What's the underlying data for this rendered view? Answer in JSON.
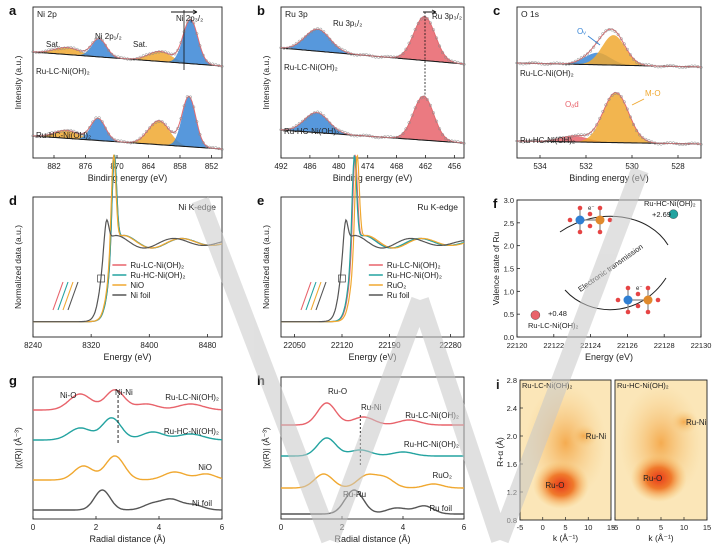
{
  "figure": {
    "watermark_color": "#c8c8c8",
    "colors": {
      "red": "#e8636b",
      "blue": "#3a86d6",
      "orange": "#f0a830",
      "teal": "#23a3a0",
      "gray": "#555555",
      "fit": "#e06a70",
      "envelope": "#1c1c1c",
      "heat_bg": "#fbe6b8",
      "heat_mid": "#f3a94a",
      "heat_core": "#e84a1e"
    }
  },
  "chart_data": [
    {
      "id": "a",
      "type": "line",
      "panel_label": "a",
      "title": "Ni 2p",
      "xlabel": "Binding energy (eV)",
      "ylabel": "Intensity (a.u.)",
      "xlim": [
        886,
        850
      ],
      "xticks": [
        882,
        876,
        870,
        864,
        858,
        852
      ],
      "spectra": [
        {
          "name": "Ru-LC-Ni(OH)₂",
          "components": [
            {
              "center": 879.5,
              "label": "Sat.",
              "color": "orange"
            },
            {
              "center": 873.4,
              "label": "Ni 2p₁/₂",
              "color": "blue"
            },
            {
              "center": 861.8,
              "label": "Sat.",
              "color": "orange"
            },
            {
              "center": 856.0,
              "label": "Ni 2p₃/₂",
              "color": "blue"
            }
          ]
        },
        {
          "name": "Ru-HC-Ni(OH)₂",
          "components": [
            {
              "center": 879.6,
              "color": "orange"
            },
            {
              "center": 873.6,
              "color": "blue"
            },
            {
              "center": 862.0,
              "color": "orange"
            },
            {
              "center": 856.3,
              "color": "blue"
            }
          ]
        }
      ],
      "labels": {
        "sat1": "Sat.",
        "p12": "Ni 2p₁/₂",
        "sat2": "Sat.",
        "p32": "Ni 2p₃/₂",
        "top": "Ru-LC-Ni(OH)₂",
        "bottom": "Ru-HC-Ni(OH)₂"
      }
    },
    {
      "id": "b",
      "type": "line",
      "panel_label": "b",
      "title": "Ru 3p",
      "xlabel": "Binding energy (eV)",
      "ylabel": "Intensity (a.u.)",
      "xlim": [
        492,
        454
      ],
      "xticks": [
        492,
        486,
        480,
        474,
        468,
        462,
        456
      ],
      "spectra": [
        {
          "name": "Ru-LC-Ni(OH)₂",
          "components": [
            {
              "center": 484.4,
              "label": "Ru 3p₁/₂",
              "color": "blue"
            },
            {
              "center": 462.2,
              "label": "Ru 3p₃/₂",
              "color": "red"
            }
          ]
        },
        {
          "name": "Ru-HC-Ni(OH)₂",
          "components": [
            {
              "center": 484.6,
              "color": "blue"
            },
            {
              "center": 462.4,
              "color": "red"
            }
          ]
        }
      ],
      "labels": {
        "p12": "Ru 3p₁/₂",
        "p32": "Ru 3p₃/₂",
        "top": "Ru-LC-Ni(OH)₂",
        "bottom": "Ru-HC-Ni(OH)₂"
      }
    },
    {
      "id": "c",
      "type": "line",
      "panel_label": "c",
      "title": "O 1s",
      "xlabel": "Binding energy (eV)",
      "xlim": [
        535,
        527
      ],
      "xticks": [
        534,
        532,
        530,
        528
      ],
      "spectra": [
        {
          "name": "Ru-LC-Ni(OH)₂",
          "components": [
            {
              "center": 531.5,
              "label": "Oᵥ",
              "color": "blue"
            },
            {
              "center": 530.8,
              "color": "orange"
            }
          ]
        },
        {
          "name": "Ru-HC-Ni(OH)₂",
          "components": [
            {
              "center": 532.5,
              "label": "Oₐd",
              "color": "red"
            },
            {
              "center": 530.7,
              "label": "M-O",
              "color": "orange"
            }
          ]
        }
      ],
      "labels": {
        "ov": "Oᵥ",
        "oad": "Oₐd",
        "mo": "M-O",
        "top": "Ru-LC-Ni(OH)₂",
        "bottom": "Ru-HC-Ni(OH)₂"
      }
    },
    {
      "id": "d",
      "type": "line",
      "panel_label": "d",
      "title": "Ni K-edge",
      "xlabel": "Energy (eV)",
      "ylabel": "Normalized data (a.u.)",
      "xlim": [
        8240,
        8500
      ],
      "xticks": [
        8240,
        8320,
        8400,
        8480
      ],
      "series": [
        {
          "name": "Ru-LC-Ni(OH)₂",
          "color": "red",
          "edge": 8344
        },
        {
          "name": "Ru-HC-Ni(OH)₂",
          "color": "teal",
          "edge": 8344
        },
        {
          "name": "NiO",
          "color": "orange",
          "edge": 8343
        },
        {
          "name": "Ni foil",
          "color": "gray",
          "edge": 8333
        }
      ]
    },
    {
      "id": "e",
      "type": "line",
      "panel_label": "e",
      "title": "Ru K-edge",
      "xlabel": "Energy (eV)",
      "ylabel": "Normalized data (a.u.)",
      "xlim": [
        22030,
        22300
      ],
      "xticks": [
        22050,
        22120,
        22190,
        22280
      ],
      "series": [
        {
          "name": "Ru-LC-Ni(OH)₂",
          "color": "red",
          "edge": 22131
        },
        {
          "name": "Ru-HC-Ni(OH)₂",
          "color": "teal",
          "edge": 22130
        },
        {
          "name": "RuO₂",
          "color": "orange",
          "edge": 22134
        },
        {
          "name": "Ru foil",
          "color": "gray",
          "edge": 22117
        }
      ]
    },
    {
      "id": "f",
      "type": "scatter",
      "panel_label": "f",
      "xlabel": "Energy (eV)",
      "ylabel": "Valence state of Ru",
      "xlim": [
        22120,
        22130
      ],
      "ylim": [
        0,
        3.0
      ],
      "xticks": [
        22120,
        22122,
        22124,
        22126,
        22128,
        22130
      ],
      "yticks": [
        0.0,
        0.5,
        1.0,
        1.5,
        2.0,
        2.5,
        3.0
      ],
      "points": [
        {
          "x": 22128.5,
          "y": 2.69,
          "label": "+2.69",
          "name": "Ru-HC-Ni(OH)₂",
          "color": "teal"
        },
        {
          "x": 22121.0,
          "y": 0.48,
          "label": "+0.48",
          "name": "Ru-LC-Ni(OH)₂",
          "color": "red"
        }
      ],
      "annotation": "Electronic transmission",
      "electron_label": "e⁻"
    },
    {
      "id": "g",
      "type": "line",
      "panel_label": "g",
      "xlabel": "Radial distance (Å)",
      "ylabel": "|χ(R)| (Å⁻³)",
      "xlim": [
        0,
        6
      ],
      "xticks": [
        0,
        2,
        4,
        6
      ],
      "series": [
        {
          "name": "Ru-LC-Ni(OH)₂",
          "color": "red"
        },
        {
          "name": "Ru-HC-Ni(OH)₂",
          "color": "teal"
        },
        {
          "name": "NiO",
          "color": "orange"
        },
        {
          "name": "Ni foil",
          "color": "gray"
        }
      ],
      "peaks": [
        {
          "label": "Ni-O",
          "r": 1.6
        },
        {
          "label": "Ni-Ni",
          "r": 2.7
        }
      ]
    },
    {
      "id": "h",
      "type": "line",
      "panel_label": "h",
      "xlabel": "Radial distance (Å)",
      "ylabel": "|χ(R)| (Å⁻³)",
      "xlim": [
        0,
        6
      ],
      "xticks": [
        0,
        2,
        4,
        6
      ],
      "series": [
        {
          "name": "Ru-LC-Ni(OH)₂",
          "color": "red"
        },
        {
          "name": "Ru-HC-Ni(OH)₂",
          "color": "teal"
        },
        {
          "name": "RuO₂",
          "color": "orange"
        },
        {
          "name": "Ru foil",
          "color": "gray"
        }
      ],
      "peaks": [
        {
          "label": "Ru-O",
          "r": 1.5
        },
        {
          "label": "Ru-Ni",
          "r": 2.6
        },
        {
          "label": "Ru-Ru",
          "r": 2.4
        }
      ]
    },
    {
      "id": "i",
      "type": "heatmap",
      "panel_label": "i",
      "xlabel": "k (Å⁻¹)",
      "ylabel": "R+α (Å)",
      "xlim": [
        -5,
        15
      ],
      "ylim": [
        0.8,
        2.8
      ],
      "xticks": [
        -5,
        0,
        5,
        10,
        15
      ],
      "yticks": [
        0.8,
        1.2,
        1.6,
        2.0,
        2.4,
        2.8
      ],
      "maps": [
        {
          "name": "Ru-LC-Ni(OH)₂",
          "spots": [
            {
              "label": "Ru-O",
              "k": 4.0,
              "r": 1.3
            },
            {
              "label": "Ru-Ni",
              "k": 9.0,
              "r": 2.0
            }
          ]
        },
        {
          "name": "Ru-HC-Ni(OH)₂",
          "spots": [
            {
              "label": "Ru-O",
              "k": 4.5,
              "r": 1.4
            },
            {
              "label": "Ru-Ni",
              "k": 10.0,
              "r": 2.2
            }
          ]
        }
      ]
    }
  ]
}
